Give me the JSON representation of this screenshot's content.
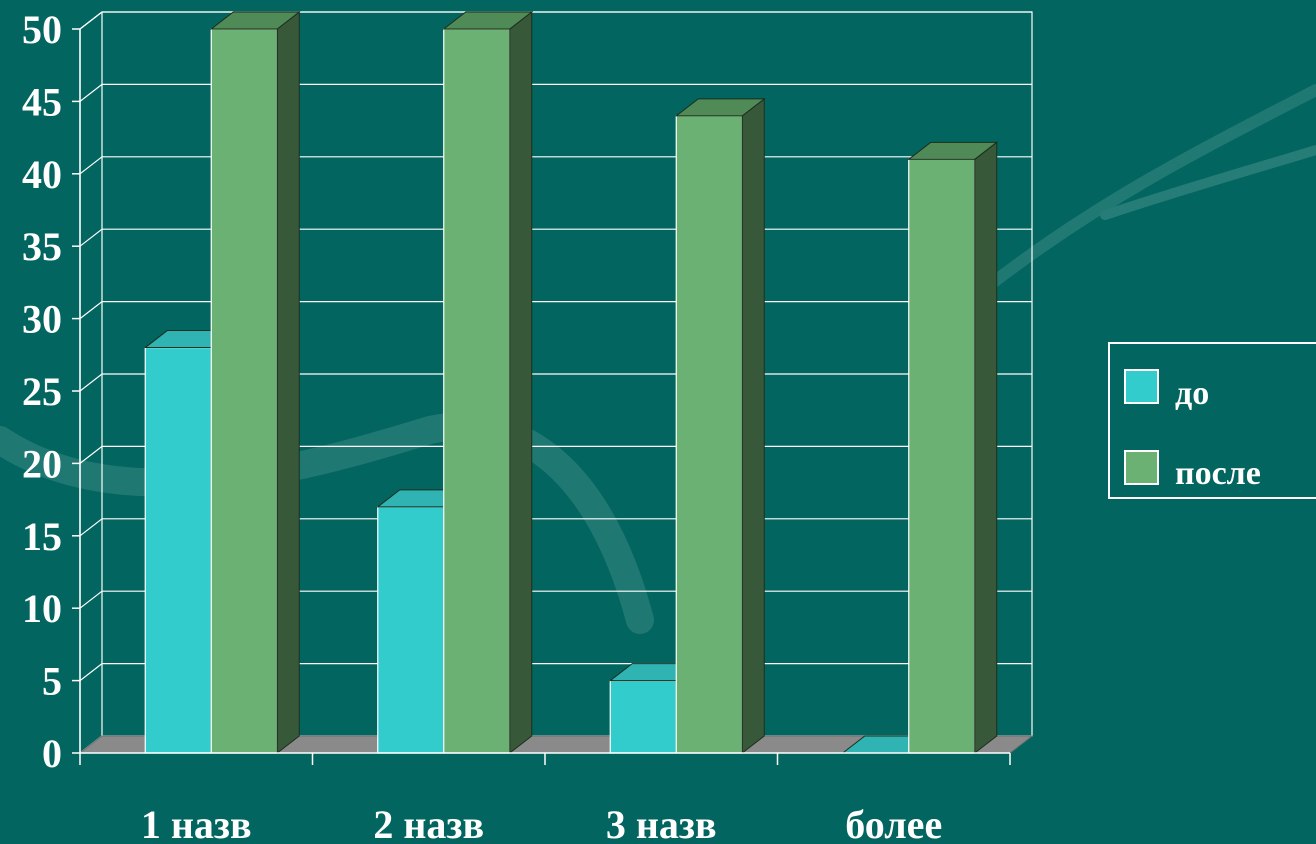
{
  "chart_data": {
    "type": "bar",
    "categories": [
      "1 назв",
      "2 назв",
      "3 назв",
      "более"
    ],
    "series": [
      {
        "name": "до",
        "values": [
          28,
          17,
          5,
          0
        ],
        "color": "#33cccc"
      },
      {
        "name": "после",
        "values": [
          50,
          50,
          44,
          41
        ],
        "color": "#6bb173"
      }
    ],
    "ylim": [
      0,
      50
    ],
    "yticks": [
      0,
      5,
      10,
      15,
      20,
      25,
      30,
      35,
      40,
      45,
      50
    ],
    "grid": true,
    "legend_position": "right",
    "three_d": true
  },
  "colors": {
    "background": "#02655f",
    "grid": "#ffffff",
    "floor": "#8a8a8a",
    "series_dark": [
      "#2a9a9a",
      "#38583a"
    ],
    "series_top": [
      "#2fb3b3",
      "#4f8a57"
    ]
  }
}
